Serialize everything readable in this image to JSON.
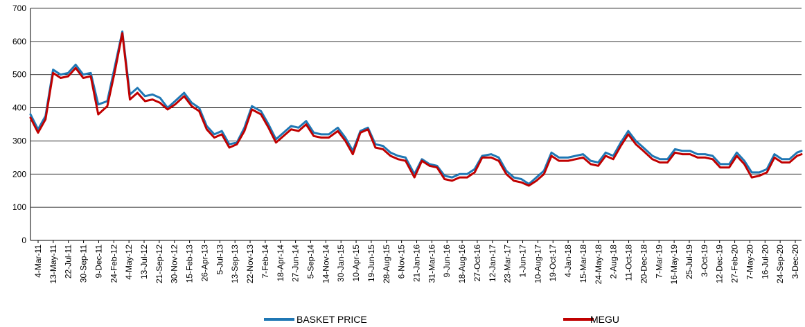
{
  "chart_data": {
    "type": "line",
    "title": "",
    "xlabel": "",
    "ylabel": "",
    "ylim": [
      0,
      700
    ],
    "yticks": [
      0,
      100,
      200,
      300,
      400,
      500,
      600,
      700
    ],
    "grid": "horizontal",
    "legend_position": "bottom",
    "x_tick_labels": [
      "4-Mar-11",
      "13-May-11",
      "22-Jul-11",
      "30-Sep-11",
      "9-Dec-11",
      "24-Feb-12",
      "4-May-12",
      "13-Jul-12",
      "21-Sep-12",
      "30-Nov-12",
      "15-Feb-13",
      "26-Apr-13",
      "5-Jul-13",
      "13-Sep-13",
      "22-Nov-13",
      "7-Feb-14",
      "18-Apr-14",
      "27-Jun-14",
      "5-Sep-14",
      "14-Nov-14",
      "30-Jan-15",
      "10-Apr-15",
      "19-Jun-15",
      "28-Aug-15",
      "6-Nov-15",
      "21-Jan-16",
      "31-Mar-16",
      "9-Jun-16",
      "18-Aug-16",
      "27-Oct-16",
      "12-Jan-17",
      "23-Mar-17",
      "1-Jun-17",
      "10-Aug-17",
      "19-Oct-17",
      "4-Jan-18",
      "15-Mar-18",
      "24-May-18",
      "2-Aug-18",
      "11-Oct-18",
      "20-Dec-18",
      "7-Mar-19",
      "16-May-19",
      "25-Jul-19",
      "3-Oct-19",
      "12-Dec-19",
      "27-Feb-20",
      "7-May-20",
      "16-Jul-20",
      "24-Sep-20",
      "3-Dec-20"
    ],
    "x": [
      "2011-03-04",
      "2011-04-08",
      "2011-05-13",
      "2011-06-17",
      "2011-07-22",
      "2011-08-26",
      "2011-09-30",
      "2011-11-04",
      "2011-12-09",
      "2012-01-13",
      "2012-02-24",
      "2012-03-30",
      "2012-05-04",
      "2012-06-08",
      "2012-07-13",
      "2012-08-17",
      "2012-09-21",
      "2012-10-26",
      "2012-11-30",
      "2013-01-04",
      "2013-02-15",
      "2013-03-22",
      "2013-04-26",
      "2013-05-31",
      "2013-07-05",
      "2013-08-09",
      "2013-09-13",
      "2013-10-18",
      "2013-11-22",
      "2013-12-27",
      "2014-02-07",
      "2014-03-14",
      "2014-04-18",
      "2014-05-23",
      "2014-06-27",
      "2014-08-01",
      "2014-09-05",
      "2014-10-10",
      "2014-11-14",
      "2014-12-19",
      "2015-01-30",
      "2015-03-06",
      "2015-04-10",
      "2015-05-15",
      "2015-06-19",
      "2015-07-24",
      "2015-08-28",
      "2015-10-02",
      "2015-11-06",
      "2015-12-11",
      "2016-01-21",
      "2016-02-25",
      "2016-03-31",
      "2016-05-05",
      "2016-06-09",
      "2016-07-14",
      "2016-08-18",
      "2016-09-22",
      "2016-10-27",
      "2016-12-01",
      "2017-01-12",
      "2017-02-16",
      "2017-03-23",
      "2017-04-27",
      "2017-06-01",
      "2017-07-06",
      "2017-08-10",
      "2017-09-14",
      "2017-10-19",
      "2017-11-23",
      "2018-01-04",
      "2018-02-08",
      "2018-03-15",
      "2018-04-19",
      "2018-05-24",
      "2018-06-28",
      "2018-08-02",
      "2018-09-06",
      "2018-10-11",
      "2018-11-15",
      "2018-12-20",
      "2019-01-31",
      "2019-03-07",
      "2019-04-11",
      "2019-05-16",
      "2019-06-20",
      "2019-07-25",
      "2019-08-29",
      "2019-10-03",
      "2019-11-07",
      "2019-12-12",
      "2020-01-23",
      "2020-02-27",
      "2020-04-02",
      "2020-05-07",
      "2020-06-11",
      "2020-07-16",
      "2020-08-20",
      "2020-09-24",
      "2020-10-29",
      "2020-12-03",
      "2020-12-24"
    ],
    "series": [
      {
        "name": "BASKET PRICE",
        "color": "#1f77b4",
        "values": [
          380,
          335,
          375,
          515,
          500,
          505,
          530,
          500,
          505,
          410,
          420,
          525,
          630,
          440,
          460,
          435,
          440,
          430,
          400,
          420,
          445,
          415,
          400,
          345,
          320,
          330,
          290,
          295,
          340,
          405,
          390,
          350,
          305,
          325,
          345,
          340,
          360,
          325,
          320,
          320,
          340,
          310,
          270,
          330,
          340,
          290,
          285,
          265,
          255,
          250,
          200,
          245,
          230,
          225,
          195,
          190,
          200,
          200,
          215,
          255,
          260,
          250,
          210,
          190,
          185,
          170,
          190,
          210,
          265,
          250,
          250,
          255,
          260,
          240,
          235,
          265,
          255,
          295,
          330,
          300,
          280,
          255,
          245,
          245,
          275,
          270,
          270,
          260,
          260,
          255,
          230,
          230,
          265,
          240,
          205,
          205,
          215,
          260,
          245,
          245,
          265,
          270
        ]
      },
      {
        "name": "MEGU",
        "color": "#c00000",
        "values": [
          370,
          325,
          365,
          505,
          490,
          495,
          520,
          490,
          495,
          380,
          405,
          510,
          625,
          425,
          445,
          420,
          425,
          415,
          395,
          410,
          435,
          405,
          390,
          335,
          310,
          320,
          280,
          290,
          330,
          395,
          380,
          340,
          295,
          315,
          335,
          330,
          350,
          315,
          310,
          310,
          330,
          300,
          260,
          325,
          335,
          280,
          275,
          255,
          245,
          240,
          190,
          240,
          225,
          220,
          185,
          180,
          190,
          190,
          205,
          250,
          250,
          240,
          200,
          180,
          175,
          165,
          180,
          200,
          255,
          240,
          240,
          245,
          250,
          230,
          225,
          255,
          245,
          285,
          320,
          290,
          270,
          245,
          235,
          235,
          265,
          260,
          260,
          250,
          250,
          245,
          220,
          220,
          255,
          230,
          190,
          195,
          205,
          250,
          235,
          235,
          255,
          260
        ]
      }
    ]
  }
}
